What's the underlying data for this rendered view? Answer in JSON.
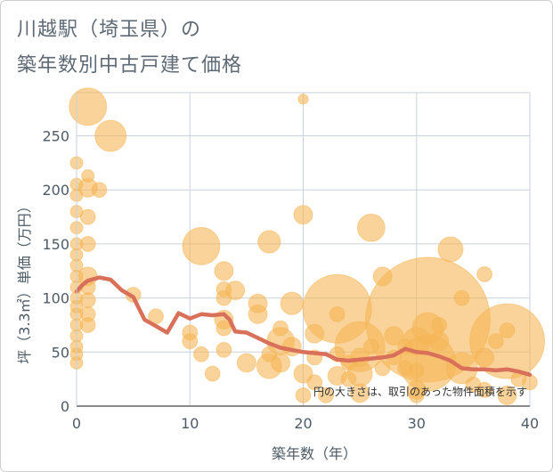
{
  "title_line1": "川越駅（埼玉県）の",
  "title_line2": "築年数別中古戸建て価格",
  "chart_data": {
    "type": "scatter",
    "title": "川越駅（埼玉県）の 築年数別中古戸建て価格",
    "xlabel": "築年数（年）",
    "ylabel": "坪（3.3㎡）単価（万円）",
    "xlim": [
      0,
      40
    ],
    "ylim": [
      0,
      290
    ],
    "xticks": [
      0,
      10,
      20,
      30,
      40
    ],
    "yticks": [
      0,
      50,
      100,
      150,
      200,
      250
    ],
    "note": "円の大きさは、取引のあった物件面積を示す",
    "colors": {
      "bubble": "#f5b655",
      "line": "#d9705a"
    },
    "points": [
      {
        "x": 0,
        "y": 225,
        "s": 1
      },
      {
        "x": 0,
        "y": 205,
        "s": 1
      },
      {
        "x": 0,
        "y": 195,
        "s": 1
      },
      {
        "x": 0,
        "y": 180,
        "s": 1
      },
      {
        "x": 0,
        "y": 165,
        "s": 1
      },
      {
        "x": 0,
        "y": 150,
        "s": 1
      },
      {
        "x": 0,
        "y": 140,
        "s": 1
      },
      {
        "x": 0,
        "y": 130,
        "s": 1
      },
      {
        "x": 0,
        "y": 120,
        "s": 1
      },
      {
        "x": 0,
        "y": 110,
        "s": 1
      },
      {
        "x": 0,
        "y": 100,
        "s": 1
      },
      {
        "x": 0,
        "y": 92,
        "s": 1
      },
      {
        "x": 0,
        "y": 85,
        "s": 1
      },
      {
        "x": 0,
        "y": 75,
        "s": 1
      },
      {
        "x": 0,
        "y": 65,
        "s": 1
      },
      {
        "x": 0,
        "y": 55,
        "s": 1
      },
      {
        "x": 0,
        "y": 48,
        "s": 1
      },
      {
        "x": 0,
        "y": 40,
        "s": 1
      },
      {
        "x": 1,
        "y": 277,
        "s": 3
      },
      {
        "x": 1,
        "y": 213,
        "s": 1
      },
      {
        "x": 1,
        "y": 202,
        "s": 1.5
      },
      {
        "x": 1,
        "y": 175,
        "s": 1.2
      },
      {
        "x": 1,
        "y": 150,
        "s": 1.2
      },
      {
        "x": 1,
        "y": 120,
        "s": 1.5
      },
      {
        "x": 1,
        "y": 110,
        "s": 1.2
      },
      {
        "x": 1,
        "y": 98,
        "s": 1.2
      },
      {
        "x": 1,
        "y": 85,
        "s": 1.2
      },
      {
        "x": 1,
        "y": 75,
        "s": 1.2
      },
      {
        "x": 2,
        "y": 200,
        "s": 1.2
      },
      {
        "x": 3,
        "y": 250,
        "s": 2.5
      },
      {
        "x": 5,
        "y": 103,
        "s": 1.2
      },
      {
        "x": 7,
        "y": 83,
        "s": 1.2
      },
      {
        "x": 10,
        "y": 68,
        "s": 1.2
      },
      {
        "x": 10,
        "y": 60,
        "s": 1.2
      },
      {
        "x": 11,
        "y": 148,
        "s": 3
      },
      {
        "x": 11,
        "y": 48,
        "s": 1.2
      },
      {
        "x": 12,
        "y": 30,
        "s": 1.2
      },
      {
        "x": 13,
        "y": 125,
        "s": 1.5
      },
      {
        "x": 13,
        "y": 108,
        "s": 1.2
      },
      {
        "x": 13,
        "y": 100,
        "s": 1.2
      },
      {
        "x": 13,
        "y": 80,
        "s": 1.5
      },
      {
        "x": 13,
        "y": 72,
        "s": 1.2
      },
      {
        "x": 13,
        "y": 52,
        "s": 1.2
      },
      {
        "x": 14,
        "y": 107,
        "s": 1.5
      },
      {
        "x": 15,
        "y": 40,
        "s": 1.5
      },
      {
        "x": 16,
        "y": 95,
        "s": 1.5
      },
      {
        "x": 16,
        "y": 85,
        "s": 1.5
      },
      {
        "x": 17,
        "y": 152,
        "s": 1.8
      },
      {
        "x": 17,
        "y": 37,
        "s": 2
      },
      {
        "x": 17,
        "y": 48,
        "s": 1.2
      },
      {
        "x": 18,
        "y": 72,
        "s": 1.2
      },
      {
        "x": 18,
        "y": 60,
        "s": 2.2
      },
      {
        "x": 18,
        "y": 40,
        "s": 1.5
      },
      {
        "x": 19,
        "y": 95,
        "s": 1.8
      },
      {
        "x": 19,
        "y": 55,
        "s": 1.5
      },
      {
        "x": 20,
        "y": 284,
        "s": 0.8
      },
      {
        "x": 20,
        "y": 177,
        "s": 1.5
      },
      {
        "x": 20,
        "y": 30,
        "s": 1.5
      },
      {
        "x": 20,
        "y": 10,
        "s": 1.2
      },
      {
        "x": 21,
        "y": 67,
        "s": 1.5
      },
      {
        "x": 21,
        "y": 45,
        "s": 1.2
      },
      {
        "x": 21,
        "y": 22,
        "s": 1.2
      },
      {
        "x": 22,
        "y": 10,
        "s": 1.2
      },
      {
        "x": 23,
        "y": 90,
        "s": 5.5
      },
      {
        "x": 23,
        "y": 85,
        "s": 1.2
      },
      {
        "x": 23,
        "y": 48,
        "s": 1.2
      },
      {
        "x": 23,
        "y": 28,
        "s": 1.5
      },
      {
        "x": 24,
        "y": 40,
        "s": 1.2
      },
      {
        "x": 24,
        "y": 25,
        "s": 1.2
      },
      {
        "x": 25,
        "y": 55,
        "s": 4
      },
      {
        "x": 25,
        "y": 45,
        "s": 1.5
      },
      {
        "x": 25,
        "y": 30,
        "s": 2
      },
      {
        "x": 25,
        "y": 12,
        "s": 1.5
      },
      {
        "x": 26,
        "y": 165,
        "s": 2.2
      },
      {
        "x": 26,
        "y": 55,
        "s": 1.2
      },
      {
        "x": 27,
        "y": 120,
        "s": 1.5
      },
      {
        "x": 27,
        "y": 35,
        "s": 1.2
      },
      {
        "x": 28,
        "y": 65,
        "s": 1.5
      },
      {
        "x": 28,
        "y": 45,
        "s": 1.2
      },
      {
        "x": 29,
        "y": 35,
        "s": 1.2
      },
      {
        "x": 29,
        "y": 55,
        "s": 1.2
      },
      {
        "x": 30,
        "y": 15,
        "s": 1.5
      },
      {
        "x": 30,
        "y": 10,
        "s": 1.2
      },
      {
        "x": 30,
        "y": 33,
        "s": 1.2
      },
      {
        "x": 30,
        "y": 60,
        "s": 2.2
      },
      {
        "x": 31,
        "y": 80,
        "s": 10
      },
      {
        "x": 31,
        "y": 72,
        "s": 2.5
      },
      {
        "x": 31,
        "y": 40,
        "s": 4.5
      },
      {
        "x": 32,
        "y": 60,
        "s": 1.5
      },
      {
        "x": 32,
        "y": 75,
        "s": 1.2
      },
      {
        "x": 33,
        "y": 145,
        "s": 2
      },
      {
        "x": 34,
        "y": 100,
        "s": 1.2
      },
      {
        "x": 34,
        "y": 35,
        "s": 2.5
      },
      {
        "x": 35,
        "y": 20,
        "s": 1.2
      },
      {
        "x": 36,
        "y": 122,
        "s": 1.2
      },
      {
        "x": 36,
        "y": 45,
        "s": 1.5
      },
      {
        "x": 36,
        "y": 15,
        "s": 1.2
      },
      {
        "x": 37,
        "y": 60,
        "s": 1.2
      },
      {
        "x": 38,
        "y": 70,
        "s": 1.2
      },
      {
        "x": 38,
        "y": 60,
        "s": 6
      },
      {
        "x": 38,
        "y": 10,
        "s": 1.5
      },
      {
        "x": 39,
        "y": 25,
        "s": 1.2
      },
      {
        "x": 40,
        "y": 22,
        "s": 1.2
      }
    ],
    "trend": {
      "x": [
        0,
        0.5,
        1,
        2,
        3,
        4,
        5,
        6,
        7,
        8,
        9,
        10,
        11,
        12,
        13,
        13.5,
        14,
        15,
        16,
        17,
        18,
        19,
        20,
        21,
        22,
        23,
        24,
        25,
        26,
        27,
        28,
        29,
        30,
        31,
        32,
        33,
        34,
        35,
        36,
        37,
        38,
        39,
        40
      ],
      "y": [
        106,
        112,
        116,
        119,
        117,
        107,
        101,
        80,
        74,
        68,
        86,
        81,
        85,
        84,
        85,
        80,
        69,
        68,
        63,
        58,
        54,
        52,
        50,
        49,
        48,
        43,
        42,
        43,
        44,
        45,
        47,
        53,
        50,
        49,
        46,
        42,
        35,
        34,
        34,
        33,
        34,
        32,
        29
      ]
    }
  }
}
